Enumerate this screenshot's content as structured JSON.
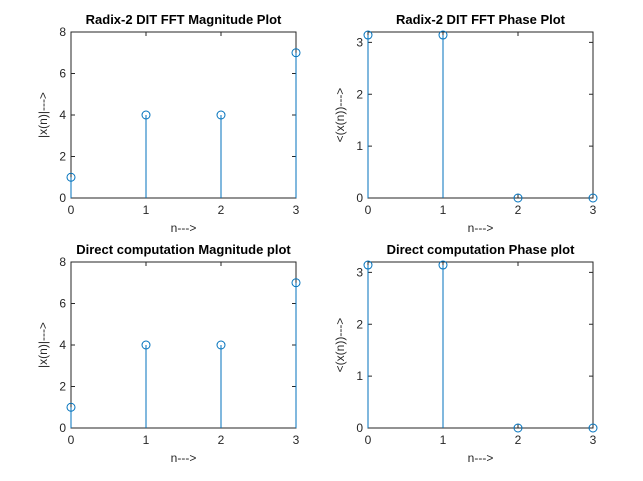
{
  "chart_data": [
    {
      "type": "stem",
      "title": "Radix-2 DIT FFT Magnitude Plot",
      "xlabel": "n--->",
      "ylabel": "|x(n)|--->",
      "xlim": [
        0,
        3
      ],
      "ylim": [
        0,
        8
      ],
      "xticks": [
        0,
        1,
        2,
        3
      ],
      "yticks": [
        0,
        2,
        4,
        6,
        8
      ],
      "x": [
        0,
        1,
        2,
        3
      ],
      "values": [
        1,
        4,
        4,
        7
      ],
      "color": "#0072BD"
    },
    {
      "type": "stem",
      "title": "Radix-2 DIT FFT Phase Plot",
      "xlabel": "n--->",
      "ylabel": "<(x(n))--->",
      "xlim": [
        0,
        3
      ],
      "ylim": [
        0,
        3.2
      ],
      "xticks": [
        0,
        1,
        2,
        3
      ],
      "yticks": [
        0,
        1,
        2,
        3
      ],
      "x": [
        0,
        1,
        2,
        3
      ],
      "values": [
        3.1416,
        3.1416,
        0,
        0
      ],
      "color": "#0072BD"
    },
    {
      "type": "stem",
      "title": "Direct computation Magnitude plot",
      "xlabel": "n--->",
      "ylabel": "|x(n)|--->",
      "xlim": [
        0,
        3
      ],
      "ylim": [
        0,
        8
      ],
      "xticks": [
        0,
        1,
        2,
        3
      ],
      "yticks": [
        0,
        2,
        4,
        6,
        8
      ],
      "x": [
        0,
        1,
        2,
        3
      ],
      "values": [
        1,
        4,
        4,
        7
      ],
      "color": "#0072BD"
    },
    {
      "type": "stem",
      "title": "Direct computation Phase plot",
      "xlabel": "n--->",
      "ylabel": "<(x(n))--->",
      "xlim": [
        0,
        3
      ],
      "ylim": [
        0,
        3.2
      ],
      "xticks": [
        0,
        1,
        2,
        3
      ],
      "yticks": [
        0,
        1,
        2,
        3
      ],
      "x": [
        0,
        1,
        2,
        3
      ],
      "values": [
        3.1416,
        3.1416,
        0,
        0
      ],
      "color": "#0072BD"
    }
  ]
}
